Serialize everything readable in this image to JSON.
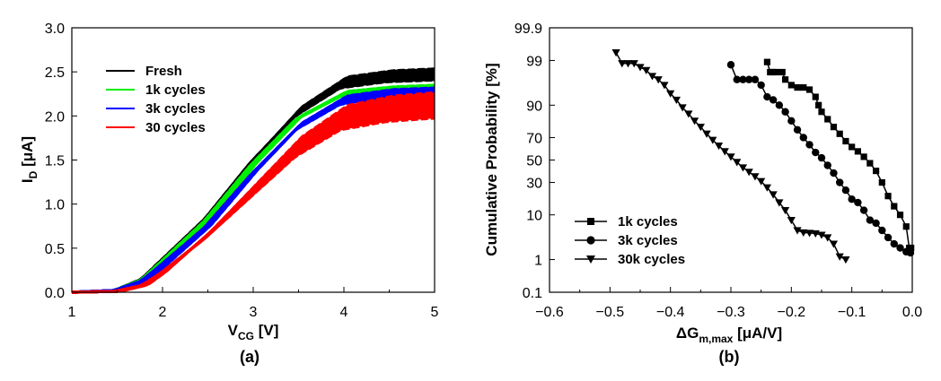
{
  "chart_data": [
    {
      "type": "line",
      "panel_label": "(a)",
      "xlabel_main": "V",
      "xlabel_sub": "CG",
      "xlabel_unit": " [V]",
      "ylabel_main": "I",
      "ylabel_sub": "D",
      "ylabel_unit": " [μA]",
      "xlim": [
        1,
        5
      ],
      "ylim": [
        0,
        3.0
      ],
      "xticks": [
        "1",
        "2",
        "3",
        "4",
        "5"
      ],
      "yticks": [
        "0.0",
        "0.5",
        "1.0",
        "1.5",
        "2.0",
        "2.5",
        "3.0"
      ],
      "legend_position": "top-left",
      "series": [
        {
          "name": "Fresh",
          "color": "#000000",
          "x": [
            1,
            1.5,
            1.8,
            2,
            2.5,
            3,
            3.5,
            4,
            4.5,
            5
          ],
          "y": [
            0,
            0.02,
            0.15,
            0.35,
            0.85,
            1.5,
            2.05,
            2.38,
            2.45,
            2.47
          ],
          "band": 0.06
        },
        {
          "name": "1k cycles",
          "color": "#00ee00",
          "x": [
            1,
            1.5,
            1.8,
            2,
            2.5,
            3,
            3.5,
            4,
            4.5,
            5
          ],
          "y": [
            0,
            0.02,
            0.14,
            0.33,
            0.82,
            1.45,
            1.98,
            2.25,
            2.3,
            2.32
          ],
          "band": 0.03
        },
        {
          "name": "3k cycles",
          "color": "#0000ff",
          "x": [
            1,
            1.5,
            1.8,
            2,
            2.5,
            3,
            3.5,
            4,
            4.5,
            5
          ],
          "y": [
            0,
            0.02,
            0.13,
            0.3,
            0.75,
            1.35,
            1.88,
            2.18,
            2.25,
            2.27
          ],
          "band": 0.05
        },
        {
          "name": "30 cycles",
          "color": "#ff0000",
          "x": [
            1,
            1.5,
            1.8,
            2,
            2.5,
            3,
            3.5,
            4,
            4.5,
            5
          ],
          "y": [
            0,
            0.01,
            0.08,
            0.22,
            0.65,
            1.15,
            1.65,
            1.98,
            2.08,
            2.12
          ],
          "band": 0.16
        }
      ]
    },
    {
      "type": "line",
      "panel_label": "(b)",
      "xlabel_main": "ΔG",
      "xlabel_sub": "m,max",
      "xlabel_unit": " [μA/V]",
      "ylabel": "Cumulative Probability [%]",
      "xlim": [
        -0.6,
        0.0
      ],
      "ylim": [
        0.1,
        99.9
      ],
      "yscale": "probability",
      "xticks": [
        "−0.6",
        "−0.5",
        "−0.4",
        "−0.3",
        "−0.2",
        "−0.1",
        "0.0"
      ],
      "yticks": [
        "0.1",
        "1",
        "10",
        "30",
        "50",
        "70",
        "90",
        "99",
        "99.9"
      ],
      "legend_position": "bottom-left",
      "series": [
        {
          "name": "1k cycles",
          "marker": "square",
          "x": [
            -0.24,
            -0.235,
            -0.23,
            -0.225,
            -0.215,
            -0.21,
            -0.2,
            -0.19,
            -0.18,
            -0.17,
            -0.16,
            -0.155,
            -0.15,
            -0.14,
            -0.13,
            -0.12,
            -0.11,
            -0.1,
            -0.09,
            -0.08,
            -0.07,
            -0.06,
            -0.05,
            -0.04,
            -0.03,
            -0.02,
            -0.01,
            -0.005,
            -0.002
          ],
          "y": [
            98.9,
            98,
            98,
            98,
            98,
            97,
            96,
            95.5,
            95.5,
            95,
            93,
            90,
            87,
            83,
            78,
            73,
            67,
            62,
            58,
            53,
            47,
            40,
            30,
            20,
            14,
            10,
            6,
            2,
            2
          ]
        },
        {
          "name": "3k cycles",
          "marker": "circle",
          "x": [
            -0.3,
            -0.29,
            -0.28,
            -0.27,
            -0.26,
            -0.25,
            -0.24,
            -0.23,
            -0.22,
            -0.21,
            -0.2,
            -0.19,
            -0.18,
            -0.17,
            -0.16,
            -0.15,
            -0.14,
            -0.13,
            -0.12,
            -0.11,
            -0.1,
            -0.09,
            -0.08,
            -0.07,
            -0.06,
            -0.05,
            -0.04,
            -0.03,
            -0.02,
            -0.01,
            -0.003
          ],
          "y": [
            98.7,
            97,
            97,
            97,
            97,
            96,
            93,
            92,
            90,
            87,
            82,
            76,
            70,
            64,
            57,
            52,
            45,
            38,
            30,
            24,
            18,
            16,
            12,
            8,
            7,
            5,
            3.5,
            2.5,
            2,
            1.6,
            1.5
          ]
        },
        {
          "name": "30k cycles",
          "marker": "triangle-down",
          "x": [
            -0.49,
            -0.48,
            -0.47,
            -0.46,
            -0.45,
            -0.44,
            -0.43,
            -0.42,
            -0.41,
            -0.4,
            -0.39,
            -0.38,
            -0.37,
            -0.36,
            -0.35,
            -0.34,
            -0.33,
            -0.32,
            -0.31,
            -0.3,
            -0.29,
            -0.28,
            -0.27,
            -0.26,
            -0.25,
            -0.24,
            -0.23,
            -0.22,
            -0.21,
            -0.2,
            -0.19,
            -0.18,
            -0.17,
            -0.16,
            -0.15,
            -0.14,
            -0.13,
            -0.12,
            -0.11
          ],
          "y": [
            99.4,
            98.8,
            98.8,
            98.8,
            98.5,
            98.2,
            97.5,
            97,
            96,
            94,
            92,
            89,
            86,
            82,
            78,
            73,
            68,
            63,
            58,
            53,
            48,
            43,
            39,
            35,
            31,
            26,
            21,
            16,
            12,
            8,
            5,
            4.5,
            4.4,
            4.3,
            4,
            3.5,
            2.5,
            1.2,
            1.0
          ]
        }
      ]
    }
  ]
}
